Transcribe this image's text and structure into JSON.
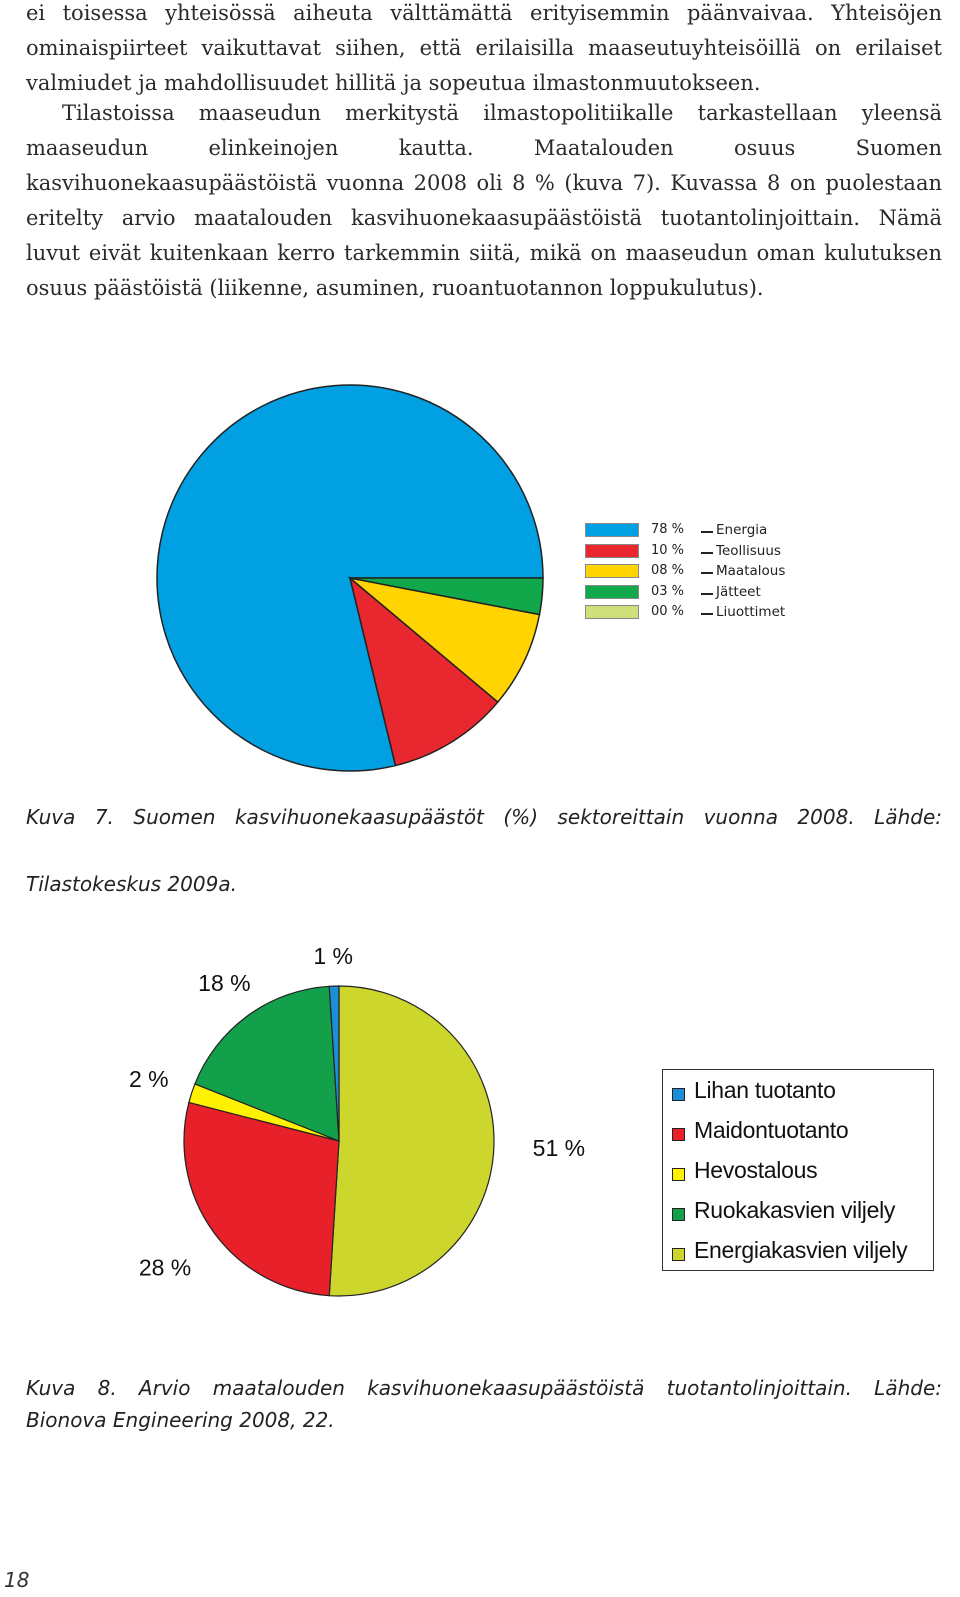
{
  "paragraphs": [
    "ei toisessa yhteisössä aiheuta välttämättä erityisemmin päänvaivaa. Yhteisöjen ominaispiirteet vaikuttavat siihen, että erilaisilla maaseutuyhteisöillä on erilaiset valmiudet ja mahdollisuudet hillitä ja sopeutua ilmastonmuutokseen.",
    "Tilastoissa maaseudun merkitystä ilmastopolitiikalle tarkastellaan yleensä maaseudun elinkeinojen kautta. Maatalouden osuus Suomen kasvihuonekaasupäästöistä vuonna 2008 oli 8 % (kuva 7). Kuvassa 8 on puolestaan eritelty arvio maatalouden kasvihuonekaasupäästöistä tuotantolinjoittain. Nämä luvut eivät kuitenkaan kerro tarkemmin siitä, mikä on maaseudun oman kulutuksen osuus päästöistä (liikenne, asuminen, ruoantuotannon loppukulutus)."
  ],
  "figure7": {
    "caption_line1": "Kuva 7. Suomen kasvihuonekaasupäästöt (%) sektoreittain vuonna 2008. Lähde:",
    "caption_line2": "Tilastokeskus 2009a."
  },
  "figure8": {
    "caption_line1": "Kuva 8. Arvio maatalouden kasvihuonekaasupäästöistä tuotantolinjoittain. Lähde:",
    "caption_line2": "Bionova Engineering 2008, 22."
  },
  "page_number": "18",
  "chart_data": [
    {
      "type": "pie",
      "title": "",
      "legend_position": "right",
      "slices": [
        {
          "label": "Energia",
          "value": 78,
          "pct_label": "78 %",
          "color": "#00a0e3"
        },
        {
          "label": "Teollisuus",
          "value": 10,
          "pct_label": "10 %",
          "color": "#e8272e"
        },
        {
          "label": "Maatalous",
          "value": 8,
          "pct_label": "08 %",
          "color": "#ffd400"
        },
        {
          "label": "Jätteet",
          "value": 3,
          "pct_label": "03 %",
          "color": "#11a84b"
        },
        {
          "label": "Liuottimet",
          "value": 0,
          "pct_label": "00 %",
          "color": "#cfe07a"
        }
      ]
    },
    {
      "type": "pie",
      "title": "",
      "legend_position": "right",
      "slices": [
        {
          "label": "Lihan tuotanto",
          "value": 1,
          "pct_label": "1 %",
          "color": "#1a8fd8"
        },
        {
          "label": "Maidontuotanto",
          "value": 28,
          "pct_label": "28 %",
          "color": "#e8202a"
        },
        {
          "label": "Hevostalous",
          "value": 2,
          "pct_label": "2 %",
          "color": "#fff200"
        },
        {
          "label": "Ruokakasvien viljely",
          "value": 18,
          "pct_label": "18 %",
          "color": "#13a04a"
        },
        {
          "label": "Energiakasvien viljely",
          "value": 51,
          "pct_label": "51 %",
          "color": "#cdd62c"
        }
      ]
    }
  ]
}
